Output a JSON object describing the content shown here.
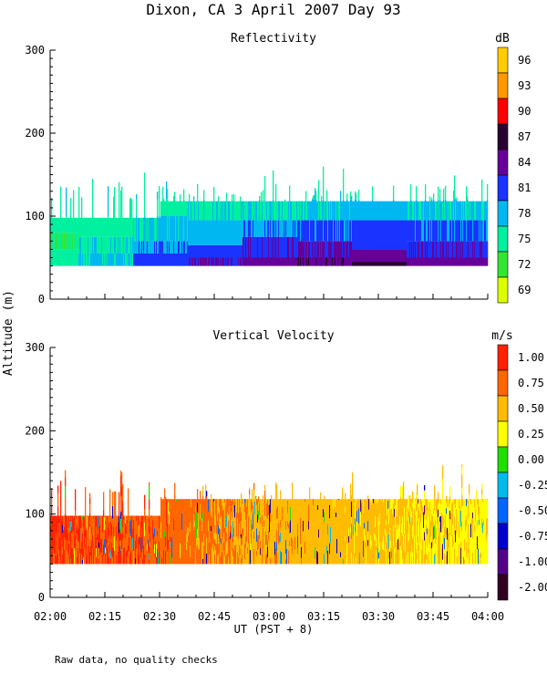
{
  "title": "Dixon, CA   3 April 2007   Day  93",
  "y_axis_label": "Altitude (m)",
  "x_axis_label": "UT  (PST + 8)",
  "footnote": "Raw data, no quality checks",
  "chart_data": [
    {
      "type": "heatmap",
      "title": "Reflectivity",
      "colorbar_unit": "dB",
      "colorbar_labels": [
        "96",
        "93",
        "90",
        "87",
        "84",
        "81",
        "78",
        "75",
        "72",
        "69"
      ],
      "colorbar_colors": [
        "#ffcc00",
        "#ff9900",
        "#ff0000",
        "#2a0033",
        "#660099",
        "#1a33ff",
        "#00b7f0",
        "#00f0a0",
        "#33e633",
        "#ddff00"
      ],
      "xlabel": "UT  (PST + 8)",
      "ylabel": "Altitude (m)",
      "x_ticks": [
        "02:00",
        "02:15",
        "02:30",
        "02:45",
        "03:00",
        "03:15",
        "03:30",
        "03:45",
        "04:00"
      ],
      "y_ticks": [
        "0",
        "100",
        "200",
        "300"
      ],
      "xlim": [
        "02:00",
        "04:00"
      ],
      "ylim": [
        0,
        300
      ],
      "data_altitude_range": [
        40,
        120
      ],
      "max_echo_top": 160,
      "profile_by_time": [
        {
          "time": "02:00",
          "layers": [
            {
              "top": 60,
              "dB": 75
            },
            {
              "top": 80,
              "dB": 73
            },
            {
              "top": 100,
              "dB": 75
            }
          ]
        },
        {
          "time": "02:15",
          "layers": [
            {
              "top": 55,
              "dB": 77
            },
            {
              "top": 75,
              "dB": 76
            },
            {
              "top": 100,
              "dB": 75
            }
          ]
        },
        {
          "time": "02:30",
          "layers": [
            {
              "top": 55,
              "dB": 81
            },
            {
              "top": 70,
              "dB": 79
            },
            {
              "top": 100,
              "dB": 77
            },
            {
              "top": 120,
              "dB": 75
            }
          ]
        },
        {
          "time": "02:45",
          "layers": [
            {
              "top": 50,
              "dB": 83
            },
            {
              "top": 65,
              "dB": 81
            },
            {
              "top": 95,
              "dB": 78
            },
            {
              "top": 120,
              "dB": 76
            }
          ]
        },
        {
          "time": "03:00",
          "layers": [
            {
              "top": 50,
              "dB": 84
            },
            {
              "top": 75,
              "dB": 82
            },
            {
              "top": 95,
              "dB": 79
            },
            {
              "top": 120,
              "dB": 76
            }
          ]
        },
        {
          "time": "03:15",
          "layers": [
            {
              "top": 50,
              "dB": 85
            },
            {
              "top": 70,
              "dB": 83
            },
            {
              "top": 95,
              "dB": 80
            },
            {
              "top": 120,
              "dB": 77
            }
          ]
        },
        {
          "time": "03:30",
          "layers": [
            {
              "top": 45,
              "dB": 87
            },
            {
              "top": 60,
              "dB": 84
            },
            {
              "top": 95,
              "dB": 81
            },
            {
              "top": 120,
              "dB": 78
            }
          ]
        },
        {
          "time": "03:45",
          "layers": [
            {
              "top": 50,
              "dB": 84
            },
            {
              "top": 70,
              "dB": 82
            },
            {
              "top": 95,
              "dB": 80
            },
            {
              "top": 120,
              "dB": 77
            }
          ]
        },
        {
          "time": "04:00",
          "layers": [
            {
              "top": 50,
              "dB": 84
            },
            {
              "top": 70,
              "dB": 82
            },
            {
              "top": 95,
              "dB": 80
            },
            {
              "top": 120,
              "dB": 77
            }
          ]
        }
      ]
    },
    {
      "type": "heatmap",
      "title": "Vertical Velocity",
      "colorbar_unit": "m/s",
      "colorbar_labels": [
        "1.00",
        "0.75",
        "0.50",
        "0.25",
        "0.00",
        "-0.25",
        "-0.50",
        "-0.75",
        "-1.00",
        "-2.00"
      ],
      "colorbar_colors": [
        "#ff2200",
        "#ff6600",
        "#ffbb00",
        "#ffff00",
        "#22dd00",
        "#00bbee",
        "#0066ff",
        "#0000cc",
        "#550088",
        "#330022"
      ],
      "xlabel": "UT  (PST + 8)",
      "ylabel": "Altitude (m)",
      "x_ticks": [
        "02:00",
        "02:15",
        "02:30",
        "02:45",
        "03:00",
        "03:15",
        "03:30",
        "03:45",
        "04:00"
      ],
      "y_ticks": [
        "0",
        "100",
        "200",
        "300"
      ],
      "xlim": [
        "02:00",
        "04:00"
      ],
      "ylim": [
        0,
        300
      ],
      "data_altitude_range": [
        40,
        120
      ],
      "max_echo_top": 160,
      "velocity_by_time": [
        {
          "time": "02:00",
          "m_s": 0.9
        },
        {
          "time": "02:15",
          "m_s": 0.85
        },
        {
          "time": "02:30",
          "m_s": 0.8
        },
        {
          "time": "02:45",
          "m_s": 0.65
        },
        {
          "time": "03:00",
          "m_s": 0.55
        },
        {
          "time": "03:15",
          "m_s": 0.5
        },
        {
          "time": "03:30",
          "m_s": 0.45
        },
        {
          "time": "03:45",
          "m_s": 0.35
        },
        {
          "time": "04:00",
          "m_s": 0.3
        }
      ]
    }
  ]
}
